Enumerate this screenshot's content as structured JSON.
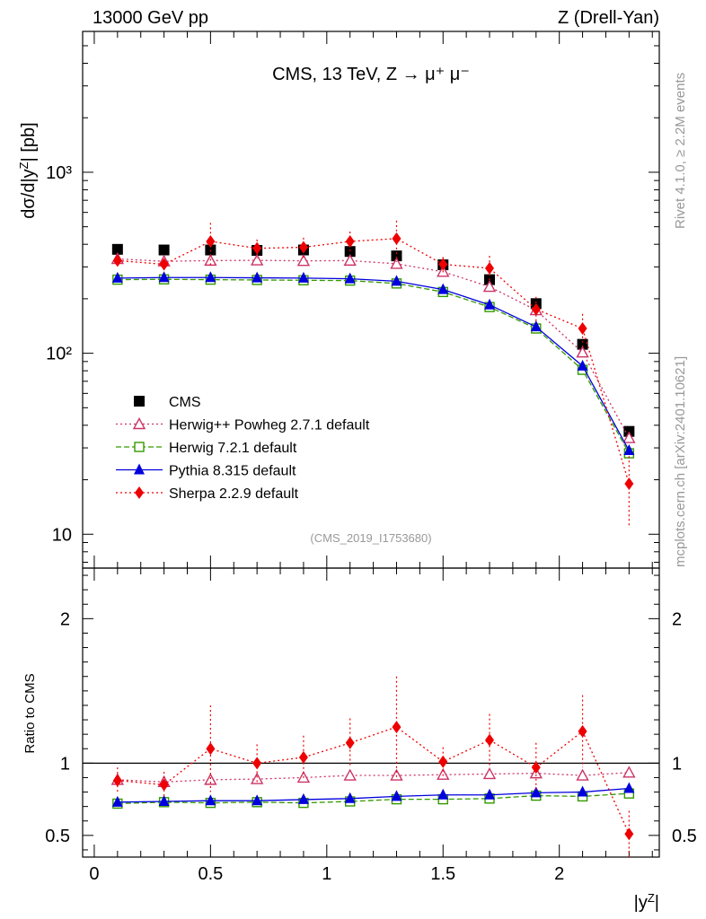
{
  "header": {
    "left": "13000 GeV pp",
    "right": "Z (Drell-Yan)"
  },
  "side": {
    "rivet": "Rivet 4.1.0, ≥ 2.2M events",
    "mcplots": "mcplots.cern.ch [arXiv:2401.10621]"
  },
  "chart_data": {
    "type": "line",
    "title": "CMS, 13 TeV, Z → μ⁺ μ⁻",
    "analysis_id": "(CMS_2019_I1753680)",
    "xlabel": "|y^Z|",
    "ylabel": "dσ/d|y^Z| [pb]",
    "ratio_ylabel": "Ratio to CMS",
    "xlim": [
      -0.05,
      2.43
    ],
    "ylim": [
      6.5,
      6000
    ],
    "yscale": "log",
    "ratio_ylim": [
      0.35,
      2.35
    ],
    "x_ticks": [
      "0",
      "0.5",
      "1",
      "1.5",
      "2"
    ],
    "y_ticks": [
      "10",
      "10²",
      "10³"
    ],
    "ratio_ticks": [
      "0.5",
      "1",
      "2"
    ],
    "x": [
      0.1,
      0.3,
      0.5,
      0.7,
      0.9,
      1.1,
      1.3,
      1.5,
      1.7,
      1.9,
      2.1,
      2.3
    ],
    "legend": {
      "position": "lower-left",
      "entries": [
        "CMS",
        "Herwig++ Powheg 2.7.1 default",
        "Herwig 7.2.1 default",
        "Pythia 8.315 default",
        "Sherpa 2.2.9 default"
      ]
    },
    "series": [
      {
        "name": "CMS",
        "color": "#000000",
        "marker": "square",
        "line": "none",
        "values": [
          375,
          372,
          372,
          370,
          372,
          365,
          345,
          308,
          255,
          188,
          112,
          37
        ],
        "errors": [
          10,
          10,
          10,
          10,
          10,
          10,
          10,
          9,
          8,
          6,
          4,
          2
        ]
      },
      {
        "name": "Herwig++ Powheg 2.7.1 default",
        "color": "#cc3366",
        "marker": "triangle-open",
        "line": "dotted",
        "values": [
          332,
          322,
          325,
          326,
          324,
          325,
          312,
          282,
          233,
          173,
          101,
          34
        ]
      },
      {
        "name": "Herwig 7.2.1 default",
        "color": "#339900",
        "marker": "square-open",
        "line": "dashed",
        "values": [
          255,
          256,
          255,
          254,
          253,
          252,
          243,
          218,
          180,
          137,
          81,
          28
        ]
      },
      {
        "name": "Pythia 8.315 default",
        "color": "#0000dd",
        "marker": "triangle-filled",
        "line": "solid",
        "values": [
          260,
          262,
          262,
          261,
          260,
          258,
          250,
          225,
          185,
          140,
          85,
          29
        ]
      },
      {
        "name": "Sherpa 2.2.9 default",
        "color": "#ee0000",
        "marker": "diamond",
        "line": "dotted",
        "values": [
          325,
          310,
          415,
          380,
          385,
          415,
          430,
          310,
          295,
          175,
          137,
          19
        ],
        "errors": [
          15,
          20,
          110,
          45,
          50,
          55,
          110,
          30,
          50,
          30,
          28,
          8
        ]
      }
    ],
    "ratio_series": [
      {
        "name": "Herwig++ Powheg 2.7.1 default",
        "values": [
          0.885,
          0.87,
          0.885,
          0.89,
          0.9,
          0.915,
          0.915,
          0.92,
          0.925,
          0.93,
          0.915,
          0.935
        ]
      },
      {
        "name": "Herwig 7.2.1 default",
        "values": [
          0.72,
          0.73,
          0.725,
          0.73,
          0.725,
          0.735,
          0.75,
          0.75,
          0.755,
          0.775,
          0.77,
          0.79
        ]
      },
      {
        "name": "Pythia 8.315 default",
        "values": [
          0.73,
          0.735,
          0.74,
          0.74,
          0.748,
          0.755,
          0.77,
          0.78,
          0.78,
          0.795,
          0.8,
          0.825
        ]
      },
      {
        "name": "Sherpa 2.2.9 default",
        "values": [
          0.88,
          0.85,
          1.1,
          1.0,
          1.04,
          1.14,
          1.25,
          1.01,
          1.16,
          0.97,
          1.22,
          0.51
        ],
        "errors": [
          0.09,
          0.09,
          0.3,
          0.13,
          0.15,
          0.17,
          0.35,
          0.1,
          0.18,
          0.17,
          0.25,
          0.16
        ]
      }
    ]
  }
}
